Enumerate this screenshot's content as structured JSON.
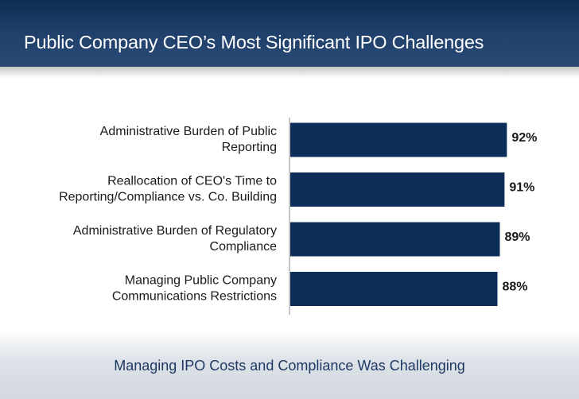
{
  "header": {
    "title": "Public Company CEO’s Most Significant IPO Challenges"
  },
  "footer": {
    "text": "Managing IPO Costs and Compliance Was Challenging"
  },
  "colors": {
    "bar": "#0c2d57",
    "header": "#1e3f6a",
    "footer_text": "#1f3864"
  },
  "chart_data": {
    "type": "bar",
    "orientation": "horizontal",
    "title": "",
    "xlabel": "",
    "ylabel": "",
    "categories": [
      [
        "Administrative Burden of Public",
        "Reporting"
      ],
      [
        "Reallocation of CEO's Time to",
        "Reporting/Compliance vs. Co. Building"
      ],
      [
        "Administrative Burden of Regulatory",
        "Compliance"
      ],
      [
        "Managing Public Company",
        "Communications Restrictions"
      ]
    ],
    "values": [
      92,
      91,
      89,
      88
    ],
    "value_labels": [
      "92%",
      "91%",
      "89%",
      "88%"
    ],
    "xlim": [
      0,
      100
    ],
    "grid": false,
    "legend": false
  }
}
